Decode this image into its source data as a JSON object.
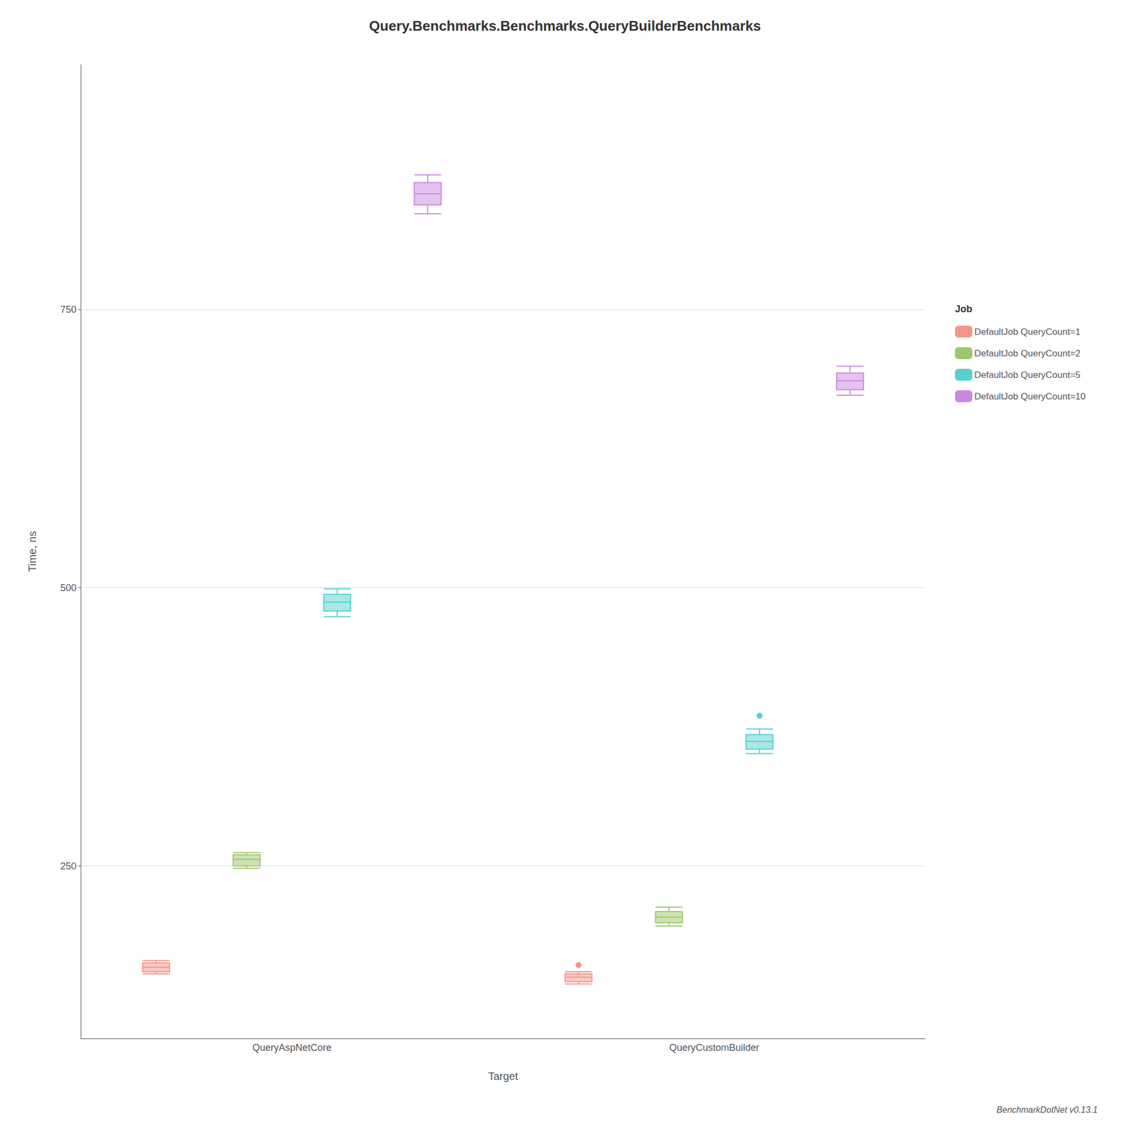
{
  "chart_data": {
    "type": "box",
    "title": "Query.Benchmarks.Benchmarks.QueryBuilderBenchmarks",
    "xlabel": "Target",
    "ylabel": "Time, ns",
    "categories": [
      "QueryAspNetCore",
      "QueryCustomBuilder"
    ],
    "series": [
      {
        "name": "DefaultJob QueryCount=1",
        "color": "#F4958C",
        "values": [
          [
            153,
            155,
            159,
            163,
            165
          ],
          [
            144,
            146,
            150,
            153,
            155
          ]
        ],
        "fliers": [
          [],
          [
            161
          ]
        ]
      },
      {
        "name": "DefaultJob QueryCount=2",
        "color": "#9DC76A",
        "values": [
          [
            248,
            250,
            256,
            260,
            262
          ],
          [
            196,
            199,
            204,
            209,
            213
          ]
        ],
        "fliers": [
          [],
          []
        ]
      },
      {
        "name": "DefaultJob QueryCount=5",
        "color": "#56CFCF",
        "values": [
          [
            474,
            479,
            487,
            494,
            499
          ],
          [
            351,
            355,
            362,
            368,
            373
          ]
        ],
        "fliers": [
          [],
          [
            385
          ]
        ]
      },
      {
        "name": "DefaultJob QueryCount=10",
        "color": "#C988E0",
        "values": [
          [
            836,
            844,
            854,
            864,
            871
          ],
          [
            673,
            678,
            686,
            693,
            699
          ]
        ],
        "fliers": [
          [],
          []
        ]
      }
    ],
    "ylim": [
      95,
      970
    ],
    "yticks": [
      250,
      500,
      750
    ],
    "grid": true,
    "legend": "right",
    "legend_title": "Job",
    "annotations": [
      {
        "text": "BenchmarkDotNet v0.13.1"
      }
    ]
  }
}
